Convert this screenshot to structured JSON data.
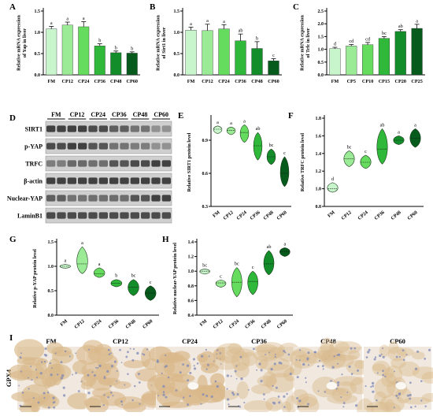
{
  "figure": {
    "colors": {
      "FM": "#c8f5cc",
      "CP12": "#9bea95",
      "CP24": "#66dc5e",
      "CP36": "#2fb83a",
      "CP48": "#138c2a",
      "CP60": "#055a1c",
      "tissue_bg": "#f1e9df",
      "tissue_stain": "#d9b98b",
      "nuclei": "#7d88b8"
    }
  },
  "chart_data": [
    {
      "panel": "A",
      "type": "bar",
      "ylabel_lines": [
        "Relative mRNA expression",
        "of Yap in liver"
      ],
      "categories": [
        "FM",
        "CP12",
        "CP24",
        "CP36",
        "CP48",
        "CP60"
      ],
      "values": [
        1.08,
        1.17,
        1.13,
        0.68,
        0.52,
        0.51
      ],
      "errors": [
        0.06,
        0.07,
        0.12,
        0.05,
        0.04,
        0.03
      ],
      "letters": [
        "a",
        "a",
        "a",
        "b",
        "b",
        "b"
      ],
      "ylim": [
        0,
        1.5
      ],
      "yticks": [
        "0.0",
        "0.5",
        "1.0",
        "1.5"
      ]
    },
    {
      "panel": "B",
      "type": "bar",
      "ylabel_lines": [
        "Relative mRNA expression",
        "of Sirt1 in liver"
      ],
      "categories": [
        "FM",
        "CP12",
        "CP24",
        "CP36",
        "CP48",
        "CP60"
      ],
      "values": [
        1.05,
        1.04,
        1.08,
        0.8,
        0.62,
        0.33
      ],
      "errors": [
        0.07,
        0.15,
        0.1,
        0.16,
        0.16,
        0.05
      ],
      "letters": [
        "a",
        "a",
        "a",
        "ab",
        "b",
        "c"
      ],
      "ylim": [
        0,
        1.5
      ],
      "yticks": [
        "0.0",
        "0.5",
        "1.0",
        "1.5"
      ]
    },
    {
      "panel": "C",
      "type": "bar",
      "ylabel_lines": [
        "Relative mRNA expression",
        "of Trfc in liver"
      ],
      "categories": [
        "FM",
        "CP5",
        "CP10",
        "CP15",
        "CP20",
        "CP25"
      ],
      "values": [
        1.03,
        1.13,
        1.18,
        1.43,
        1.7,
        1.82
      ],
      "errors": [
        0.05,
        0.06,
        0.09,
        0.07,
        0.07,
        0.16
      ],
      "letters": [
        "d",
        "cd",
        "cd",
        "bc",
        "ab",
        "a"
      ],
      "ylim": [
        0,
        2.5
      ],
      "yticks": [
        "0.0",
        "0.5",
        "1.0",
        "1.5",
        "2.0",
        "2.5"
      ]
    },
    {
      "panel": "E",
      "type": "violin",
      "ylabel_lines": [
        "Relative SIRT1 protein level"
      ],
      "categories": [
        "FM",
        "CP12",
        "CP24",
        "CP36",
        "CP48",
        "CP60"
      ],
      "values": [
        1.0,
        0.99,
        0.97,
        0.85,
        0.75,
        0.6
      ],
      "mins": [
        0.96,
        0.95,
        0.88,
        0.72,
        0.68,
        0.48
      ],
      "maxs": [
        1.03,
        1.02,
        1.04,
        0.97,
        0.82,
        0.75
      ],
      "letters": [
        "a",
        "a",
        "a",
        "ab",
        "bc",
        "c"
      ],
      "ylim": [
        0.3,
        1.1
      ],
      "yticks": [
        "0.3",
        "0.6",
        "0.9"
      ]
    },
    {
      "panel": "F",
      "type": "violin",
      "ylabel_lines": [
        "Relative TRFC protein level"
      ],
      "categories": [
        "FM",
        "CP12",
        "CP24",
        "CP36",
        "CP48",
        "CP60"
      ],
      "values": [
        1.0,
        1.34,
        1.3,
        1.45,
        1.55,
        1.57
      ],
      "mins": [
        0.96,
        1.25,
        1.23,
        1.28,
        1.5,
        1.47
      ],
      "maxs": [
        1.07,
        1.43,
        1.38,
        1.68,
        1.6,
        1.68
      ],
      "letters": [
        "d",
        "bc",
        "c",
        "ab",
        "a",
        "a"
      ],
      "ylim": [
        0.8,
        1.8
      ],
      "yticks": [
        "0.8",
        "1.0",
        "1.2",
        "1.4",
        "1.6",
        "1.8"
      ]
    },
    {
      "panel": "G",
      "type": "violin",
      "ylabel_lines": [
        "Relative p-YAP protein level"
      ],
      "categories": [
        "FM",
        "CP12",
        "CP24",
        "CP36",
        "CP48",
        "CP60"
      ],
      "values": [
        1.0,
        1.05,
        0.85,
        0.65,
        0.57,
        0.45
      ],
      "mins": [
        0.96,
        0.85,
        0.77,
        0.58,
        0.4,
        0.3
      ],
      "maxs": [
        1.04,
        1.4,
        0.97,
        0.73,
        0.73,
        0.6
      ],
      "letters": [
        "a",
        "a",
        "a",
        "b",
        "bc",
        "c"
      ],
      "ylim": [
        0,
        1.5
      ],
      "yticks": [
        "0.0",
        "0.5",
        "1.0",
        "1.5"
      ]
    },
    {
      "panel": "H",
      "type": "violin",
      "ylabel_lines": [
        "Relative nuclear-YAP protein level"
      ],
      "categories": [
        "FM",
        "CP12",
        "CP24",
        "CP36",
        "CP48",
        "CP60"
      ],
      "values": [
        1.0,
        0.84,
        0.85,
        0.86,
        1.1,
        1.27
      ],
      "mins": [
        0.96,
        0.78,
        0.65,
        0.68,
        0.95,
        1.2
      ],
      "maxs": [
        1.03,
        0.88,
        1.05,
        1.0,
        1.28,
        1.32
      ],
      "letters": [
        "bc",
        "c",
        "bc",
        "c",
        "ab",
        "a"
      ],
      "ylim": [
        0.4,
        1.4
      ],
      "yticks": [
        "0.4",
        "0.6",
        "0.8",
        "1.0",
        "1.2",
        "1.4"
      ]
    }
  ],
  "blot": {
    "letter": "D",
    "lanes": [
      "FM",
      "CP12",
      "CP24",
      "CP36",
      "CP48",
      "CP60"
    ],
    "rows": [
      "SIRT1",
      "p-YAP",
      "TRFC",
      "β-actin",
      "Nuclear-YAP",
      "LaminB1"
    ]
  },
  "ihc": {
    "letter": "I",
    "row_label": "GPX4",
    "groups": [
      "FM",
      "CP12",
      "CP24",
      "CP36",
      "CP48",
      "CP60"
    ],
    "stain_intensity": [
      0.75,
      0.7,
      0.85,
      0.35,
      0.35,
      0.3
    ]
  }
}
